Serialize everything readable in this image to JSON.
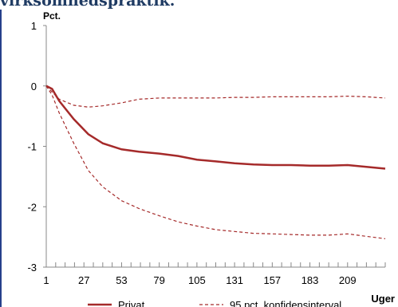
{
  "heading": "virksomhedspraktik.",
  "chart_data": {
    "type": "line",
    "ylabel": "Pct.",
    "xlabel": "Uger",
    "ylim": [
      -3,
      1
    ],
    "xlim": [
      1,
      235
    ],
    "yticks": [
      1,
      0,
      -1,
      -2,
      -3
    ],
    "xticks": [
      1,
      27,
      53,
      79,
      105,
      131,
      157,
      183,
      209
    ],
    "grid": false,
    "legend_position": "bottom",
    "series": [
      {
        "name": "Privat",
        "style": "solid",
        "color": "#a52a2a",
        "x": [
          1,
          5,
          10,
          20,
          30,
          40,
          53,
          65,
          79,
          92,
          105,
          118,
          131,
          144,
          157,
          170,
          183,
          196,
          209,
          222,
          235
        ],
        "y": [
          0,
          -0.05,
          -0.25,
          -0.55,
          -0.8,
          -0.95,
          -1.05,
          -1.09,
          -1.12,
          -1.16,
          -1.22,
          -1.25,
          -1.28,
          -1.3,
          -1.31,
          -1.31,
          -1.32,
          -1.32,
          -1.31,
          -1.34,
          -1.37
        ]
      },
      {
        "name": "95 pct. konfidensinterval",
        "style": "dashed",
        "color": "#a52a2a",
        "x": [
          1,
          5,
          10,
          20,
          30,
          40,
          53,
          65,
          79,
          92,
          105,
          118,
          131,
          144,
          157,
          170,
          183,
          196,
          209,
          222,
          235
        ],
        "y": [
          0,
          -0.1,
          -0.22,
          -0.32,
          -0.35,
          -0.33,
          -0.28,
          -0.22,
          -0.2,
          -0.2,
          -0.2,
          -0.2,
          -0.19,
          -0.19,
          -0.18,
          -0.18,
          -0.18,
          -0.18,
          -0.17,
          -0.18,
          -0.2
        ]
      },
      {
        "name": "",
        "style": "dashed",
        "color": "#a52a2a",
        "x": [
          1,
          5,
          10,
          20,
          30,
          40,
          53,
          65,
          79,
          92,
          105,
          118,
          131,
          144,
          157,
          170,
          183,
          196,
          209,
          222,
          235
        ],
        "y": [
          0,
          -0.15,
          -0.45,
          -0.95,
          -1.4,
          -1.67,
          -1.9,
          -2.03,
          -2.15,
          -2.25,
          -2.32,
          -2.38,
          -2.41,
          -2.44,
          -2.45,
          -2.46,
          -2.47,
          -2.47,
          -2.45,
          -2.49,
          -2.53
        ]
      }
    ]
  }
}
